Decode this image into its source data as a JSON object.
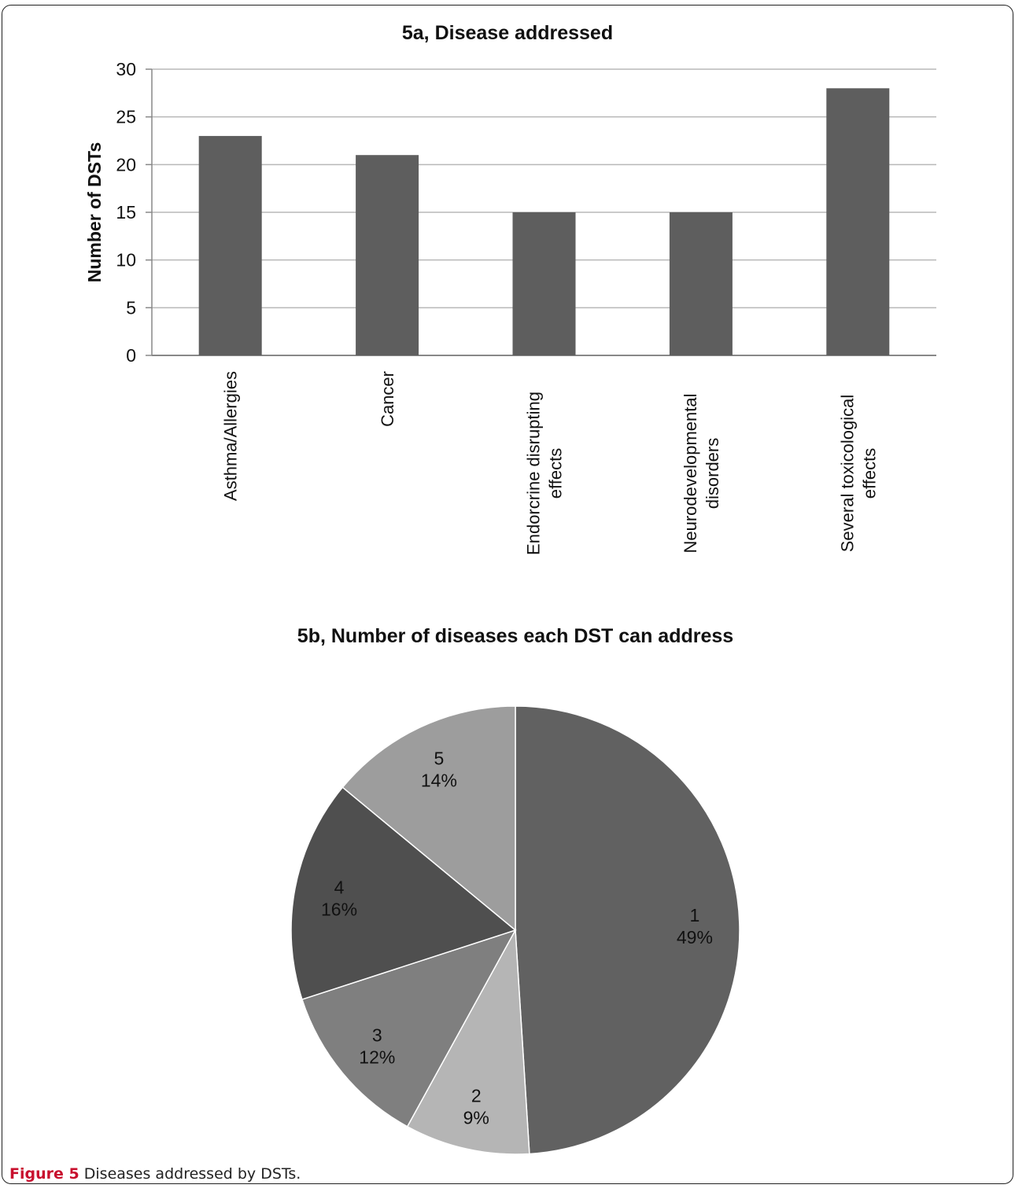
{
  "caption": {
    "label": "Figure 5",
    "text": "Diseases addressed by DSTs."
  },
  "chart_data": [
    {
      "type": "bar",
      "title": "5a, Disease addressed",
      "xlabel": "",
      "ylabel": "Number of DSTs",
      "ylim": [
        0,
        30
      ],
      "yticks": [
        0,
        5,
        10,
        15,
        20,
        25,
        30
      ],
      "grid": true,
      "categories": [
        [
          "Asthma/Allergies"
        ],
        [
          "Cancer"
        ],
        [
          "Endorcrine disrupting",
          "effects"
        ],
        [
          "Neurodevelopmental",
          "disorders"
        ],
        [
          "Several toxicological",
          "effects"
        ]
      ],
      "values": [
        23,
        21,
        15,
        15,
        28
      ],
      "color": "#5e5e5e"
    },
    {
      "type": "pie",
      "title": "5b, Number of diseases each DST can address",
      "slices": [
        {
          "label": "1",
          "percent": 49,
          "color": "#616161"
        },
        {
          "label": "2",
          "percent": 9,
          "color": "#b5b5b5"
        },
        {
          "label": "3",
          "percent": 12,
          "color": "#7f7f7f"
        },
        {
          "label": "4",
          "percent": 16,
          "color": "#4f4f4f"
        },
        {
          "label": "5",
          "percent": 14,
          "color": "#9d9d9d"
        }
      ]
    }
  ]
}
